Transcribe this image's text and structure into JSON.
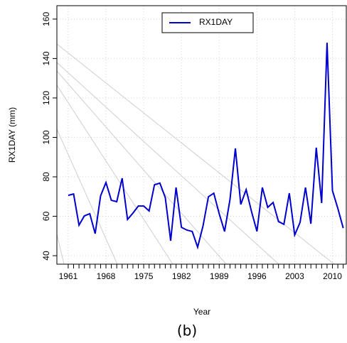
{
  "chart_data": {
    "type": "line",
    "caption": "(b)",
    "xlabel": "Year",
    "ylabel": "RX1DAY (mm)",
    "x": [
      1961,
      1962,
      1963,
      1964,
      1965,
      1966,
      1967,
      1968,
      1969,
      1970,
      1971,
      1972,
      1973,
      1974,
      1975,
      1976,
      1977,
      1978,
      1979,
      1980,
      1981,
      1982,
      1983,
      1984,
      1985,
      1986,
      1987,
      1988,
      1989,
      1990,
      1991,
      1992,
      1993,
      1994,
      1995,
      1996,
      1997,
      1998,
      1999,
      2000,
      2001,
      2002,
      2003,
      2004,
      2005,
      2006,
      2007,
      2008,
      2009,
      2010,
      2011,
      2012
    ],
    "series": [
      {
        "name": "RX1DAY",
        "color": "#0000cd",
        "values": [
          70.6,
          71.3,
          55.5,
          60.2,
          61.3,
          51.2,
          70.3,
          77.1,
          68.1,
          67.4,
          79.3,
          58.4,
          61.6,
          65.2,
          65.2,
          62.7,
          76.0,
          76.8,
          69.5,
          47.6,
          74.6,
          54.4,
          53.0,
          52.3,
          44.3,
          55.1,
          69.9,
          71.7,
          61.3,
          52.3,
          68.5,
          94.4,
          66.0,
          73.5,
          62.3,
          52.3,
          74.6,
          64.5,
          67.0,
          57.3,
          55.9,
          71.7,
          50.5,
          56.9,
          74.6,
          56.2,
          94.8,
          66.7,
          148.0,
          73.0,
          64.0,
          54.0
        ]
      }
    ],
    "xlim": [
      1958.9,
      2012.7
    ],
    "ylim": [
      35.7,
      166.8
    ],
    "xticks": [
      1961,
      1968,
      1975,
      1982,
      1989,
      1996,
      2003,
      2010
    ],
    "yticks": [
      40,
      60,
      80,
      100,
      120,
      140,
      160
    ],
    "grid": true,
    "legend": "top"
  }
}
